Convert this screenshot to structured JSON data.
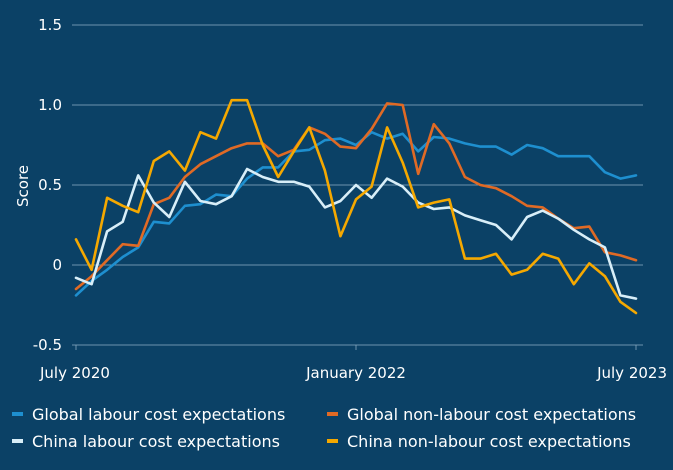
{
  "chart_data": {
    "type": "line",
    "title": "",
    "xlabel": "",
    "ylabel": "Score",
    "ylim": [
      -0.5,
      1.5
    ],
    "yticks": [
      1.5,
      1.0,
      0.5,
      0,
      -0.5
    ],
    "ytick_labels": [
      "1.5",
      "1.0",
      "0.5",
      "0",
      "-0.5"
    ],
    "x_start": "July 2020",
    "x_end": "July 2023",
    "frequency": "monthly",
    "xticks": [
      {
        "index": 0,
        "label": "July 2020"
      },
      {
        "index": 18,
        "label": "January 2022"
      },
      {
        "index": 36,
        "label": "July 2023"
      }
    ],
    "grid": "horizontal",
    "legend_position": "bottom",
    "series": [
      {
        "name": "Global labour cost expectations",
        "color": "#1e8fcf",
        "values": [
          -0.19,
          -0.1,
          -0.03,
          0.05,
          0.11,
          0.27,
          0.26,
          0.37,
          0.38,
          0.44,
          0.43,
          0.54,
          0.61,
          0.61,
          0.71,
          0.72,
          0.78,
          0.79,
          0.75,
          0.83,
          0.79,
          0.82,
          0.71,
          0.8,
          0.79,
          0.76,
          0.74,
          0.74,
          0.69,
          0.75,
          0.73,
          0.68,
          0.68,
          0.68,
          0.58,
          0.54,
          0.56
        ]
      },
      {
        "name": "Global non-labour cost expectations",
        "color": "#e06a25",
        "values": [
          -0.15,
          -0.07,
          0.03,
          0.13,
          0.12,
          0.38,
          0.42,
          0.55,
          0.63,
          0.68,
          0.73,
          0.76,
          0.76,
          0.68,
          0.72,
          0.86,
          0.82,
          0.74,
          0.73,
          0.85,
          1.01,
          1.0,
          0.57,
          0.88,
          0.76,
          0.55,
          0.5,
          0.48,
          0.43,
          0.37,
          0.36,
          0.29,
          0.23,
          0.24,
          0.08,
          0.06,
          0.03
        ]
      },
      {
        "name": "China labour cost expectations",
        "color": "#d8eef8",
        "values": [
          -0.08,
          -0.12,
          0.21,
          0.27,
          0.56,
          0.39,
          0.3,
          0.52,
          0.4,
          0.38,
          0.43,
          0.6,
          0.55,
          0.52,
          0.52,
          0.49,
          0.36,
          0.4,
          0.5,
          0.42,
          0.54,
          0.49,
          0.39,
          0.35,
          0.36,
          0.31,
          0.28,
          0.25,
          0.16,
          0.3,
          0.34,
          0.29,
          0.22,
          0.16,
          0.11,
          -0.19,
          -0.21
        ]
      },
      {
        "name": "China non-labour cost expectations",
        "color": "#f5a800",
        "values": [
          0.16,
          -0.03,
          0.42,
          0.37,
          0.33,
          0.65,
          0.71,
          0.59,
          0.83,
          0.79,
          1.03,
          1.03,
          0.75,
          0.55,
          0.71,
          0.86,
          0.59,
          0.18,
          0.41,
          0.49,
          0.86,
          0.64,
          0.36,
          0.39,
          0.41,
          0.04,
          0.04,
          0.07,
          -0.06,
          -0.03,
          0.07,
          0.04,
          -0.12,
          0.01,
          -0.07,
          -0.23,
          -0.3
        ]
      }
    ]
  },
  "legend": {
    "items": [
      {
        "label": "Global labour cost expectations",
        "color": "#1e8fcf"
      },
      {
        "label": "Global non-labour cost expectations",
        "color": "#e06a25"
      },
      {
        "label": "China labour cost expectations",
        "color": "#d8eef8"
      },
      {
        "label": "China non-labour cost expectations",
        "color": "#f5a800"
      }
    ]
  },
  "colors": {
    "background": "#0b4166",
    "gridline": "#8fb0c6",
    "text": "#ffffff"
  }
}
